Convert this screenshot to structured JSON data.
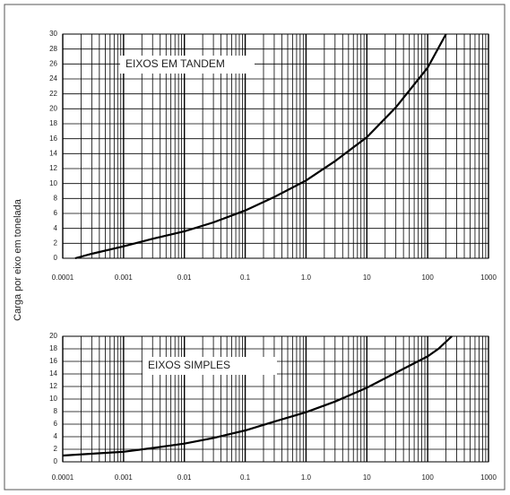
{
  "chart_data": [
    {
      "type": "line",
      "xscale": "log",
      "ylabel": "Carga por eixo em tonelada",
      "annotation": "EIXOS EM TANDEM",
      "x": [
        0.00016,
        0.0003,
        0.001,
        0.003,
        0.01,
        0.03,
        0.1,
        0.3,
        1,
        3,
        10,
        30,
        100,
        200
      ],
      "series": [
        {
          "name": "EIXOS EM TANDEM",
          "color": "#000000",
          "values": [
            0,
            0.6,
            1.6,
            2.6,
            3.6,
            4.8,
            6.4,
            8.2,
            10.4,
            13,
            16.2,
            20.2,
            25.5,
            30
          ]
        }
      ],
      "xlim": [
        0.0001,
        1000
      ],
      "xticks": [
        {
          "value": 0.0001,
          "label": "0.0001"
        },
        {
          "value": 0.001,
          "label": "0.001"
        },
        {
          "value": 0.01,
          "label": "0.01"
        },
        {
          "value": 0.1,
          "label": "0.1"
        },
        {
          "value": 1,
          "label": "1.0"
        },
        10,
        100,
        1000
      ],
      "ylim": [
        0,
        30
      ],
      "yticks": [
        0,
        2,
        4,
        6,
        8,
        10,
        12,
        14,
        16,
        18,
        20,
        22,
        24,
        26,
        28,
        30
      ],
      "grid": true
    },
    {
      "type": "line",
      "xscale": "log",
      "annotation": "EIXOS SIMPLES",
      "x": [
        0.0001,
        0.001,
        0.003,
        0.01,
        0.03,
        0.1,
        0.3,
        1,
        3,
        10,
        30,
        100,
        150,
        250
      ],
      "series": [
        {
          "name": "EIXOS SIMPLES",
          "color": "#000000",
          "values": [
            1,
            1.6,
            2.2,
            2.9,
            3.8,
            5,
            6.4,
            7.9,
            9.6,
            11.8,
            14.2,
            16.8,
            18,
            20
          ]
        }
      ],
      "xlim": [
        0.0001,
        1000
      ],
      "xticks": [
        {
          "value": 0.0001,
          "label": "0.0001"
        },
        {
          "value": 0.001,
          "label": "0.001"
        },
        {
          "value": 0.01,
          "label": "0.01"
        },
        {
          "value": 0.1,
          "label": "0.1"
        },
        {
          "value": 1,
          "label": "1.0"
        },
        10,
        100,
        1000
      ],
      "ylim": [
        0,
        20
      ],
      "yticks": [
        0,
        2,
        4,
        6,
        8,
        10,
        12,
        14,
        16,
        18,
        20
      ],
      "grid": true
    }
  ]
}
